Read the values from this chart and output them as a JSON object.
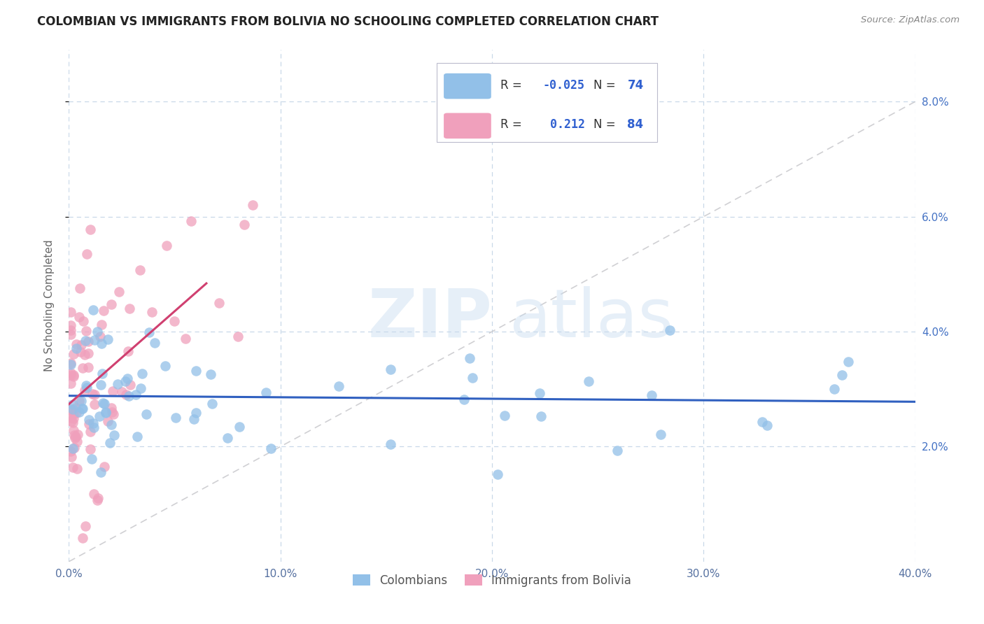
{
  "title": "COLOMBIAN VS IMMIGRANTS FROM BOLIVIA NO SCHOOLING COMPLETED CORRELATION CHART",
  "source": "Source: ZipAtlas.com",
  "ylabel": "No Schooling Completed",
  "color_blue": "#92C0E8",
  "color_pink": "#F0A0BC",
  "trendline_blue": "#3060C0",
  "trendline_pink": "#D04070",
  "trendline_diag_color": "#C8C8CC",
  "watermark_zip": "ZIP",
  "watermark_atlas": "atlas",
  "xlim": [
    0,
    0.4
  ],
  "ylim": [
    0,
    0.089
  ],
  "xtick_vals": [
    0.0,
    0.1,
    0.2,
    0.3,
    0.4
  ],
  "xtick_labels": [
    "0.0%",
    "10.0%",
    "20.0%",
    "30.0%",
    "40.0%"
  ],
  "ytick_vals": [
    0.02,
    0.04,
    0.06,
    0.08
  ],
  "ytick_labels": [
    "2.0%",
    "4.0%",
    "6.0%",
    "8.0%"
  ],
  "legend_items": [
    {
      "color": "#92C0E8",
      "r": "-0.025",
      "n": "74"
    },
    {
      "color": "#F0A0BC",
      "r": "0.212",
      "n": "84"
    }
  ],
  "bottom_legend": [
    "Colombians",
    "Immigrants from Bolivia"
  ]
}
